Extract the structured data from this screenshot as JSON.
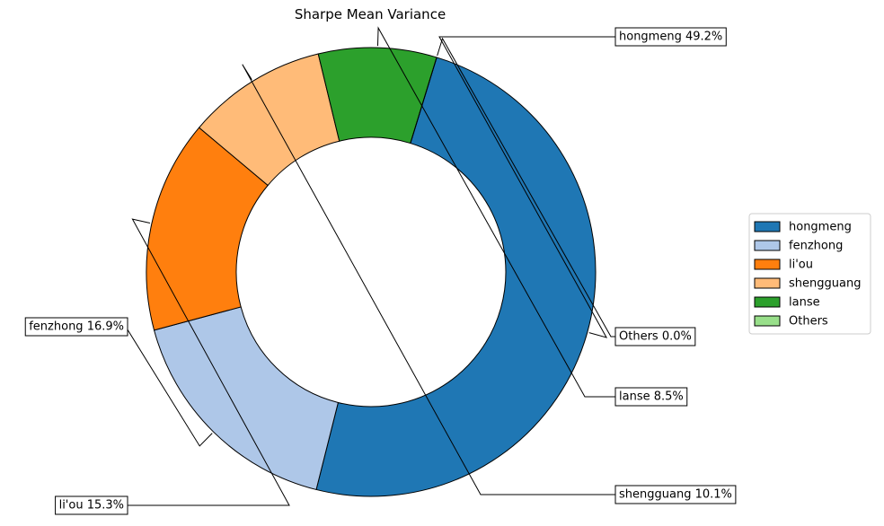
{
  "chart_data": {
    "type": "pie",
    "style": "donut",
    "title": "Sharpe Mean Variance",
    "legend_position": "right",
    "slices": [
      {
        "name": "hongmeng",
        "value": 49.2,
        "label": "hongmeng 49.2%",
        "color": "#1f77b4"
      },
      {
        "name": "fenzhong",
        "value": 16.9,
        "label": "fenzhong 16.9%",
        "color": "#aec7e8"
      },
      {
        "name": "li'ou",
        "value": 15.3,
        "label": "li'ou 15.3%",
        "color": "#ff7f0e"
      },
      {
        "name": "shengguang",
        "value": 10.1,
        "label": "shengguang 10.1%",
        "color": "#ffbb78"
      },
      {
        "name": "lanse",
        "value": 8.5,
        "label": "lanse 8.5%",
        "color": "#2ca02c"
      },
      {
        "name": "Others",
        "value": 0.0,
        "label": "Others 0.0%",
        "color": "#98df8a"
      }
    ]
  }
}
